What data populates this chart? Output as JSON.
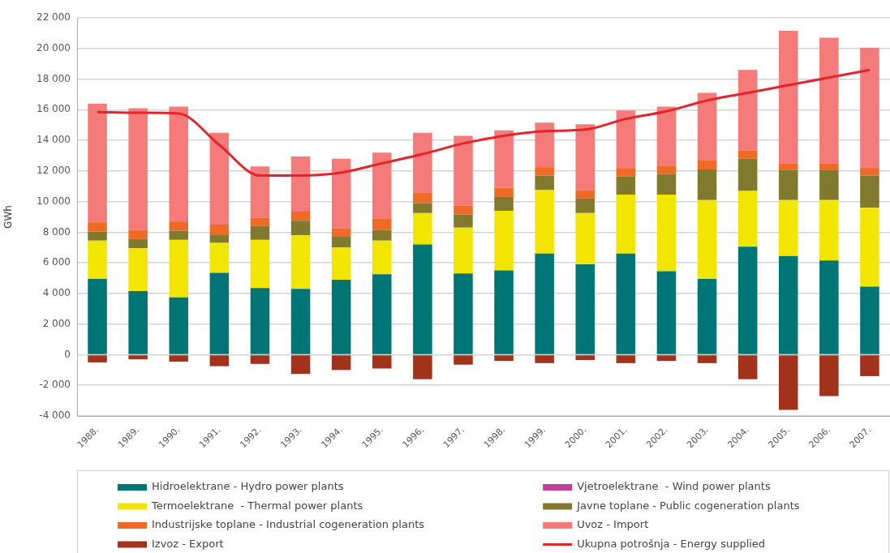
{
  "chart_data": {
    "type": "bar",
    "stacked": true,
    "ylabel": "GWh",
    "categories": [
      "1988.",
      "1989.",
      "1990.",
      "1991.",
      "1992.",
      "1993.",
      "1994.",
      "1995.",
      "1996.",
      "1997.",
      "1998.",
      "1999.",
      "2000.",
      "2001.",
      "2002.",
      "2003.",
      "2004.",
      "2005.",
      "2006.",
      "2007."
    ],
    "series": [
      {
        "name": "Hidroelektrane - Hydro power plants",
        "color": "#007575",
        "values": [
          4950,
          4150,
          3750,
          5350,
          4350,
          4300,
          4900,
          5250,
          7200,
          5300,
          5500,
          6600,
          5900,
          6600,
          5450,
          4950,
          7050,
          6450,
          6150,
          4450
        ]
      },
      {
        "name": "Vjetroelektrane  - Wind power plants",
        "color": "#c03fa0",
        "values": [
          0,
          0,
          0,
          0,
          0,
          0,
          0,
          0,
          0,
          0,
          0,
          0,
          0,
          0,
          0,
          0,
          0,
          0,
          0,
          0
        ]
      },
      {
        "name": "Termoelektrane  - Thermal power plants",
        "color": "#f2e500",
        "values": [
          2500,
          2800,
          3750,
          1950,
          3150,
          3500,
          2100,
          2200,
          2050,
          3000,
          3900,
          4150,
          3350,
          3850,
          5000,
          5150,
          3650,
          3650,
          3950,
          5150
        ]
      },
      {
        "name": "Javne toplane - Public cogeneration plants",
        "color": "#80792e",
        "values": [
          600,
          600,
          600,
          550,
          900,
          950,
          700,
          700,
          650,
          850,
          900,
          950,
          950,
          1200,
          1350,
          2000,
          2100,
          1950,
          1950,
          2100
        ]
      },
      {
        "name": "Industrijske toplane - Industrial cogeneration plants",
        "color": "#f06a25",
        "values": [
          600,
          600,
          600,
          650,
          550,
          600,
          550,
          750,
          700,
          600,
          600,
          550,
          550,
          500,
          550,
          600,
          550,
          450,
          450,
          500
        ]
      },
      {
        "name": "Uvoz - Import",
        "color": "#f57a7a",
        "values": [
          7750,
          7950,
          7500,
          6000,
          3350,
          3600,
          4550,
          4300,
          3900,
          4550,
          3750,
          2900,
          4300,
          3800,
          3850,
          4400,
          5250,
          8650,
          8200,
          7850
        ]
      },
      {
        "name": "Izvoz - Export",
        "color": "#a3321c",
        "values": [
          -500,
          -300,
          -450,
          -750,
          -600,
          -1250,
          -1000,
          -900,
          -1600,
          -650,
          -400,
          -550,
          -350,
          -550,
          -400,
          -550,
          -1600,
          -3600,
          -2700,
          -1400
        ]
      },
      {
        "name": "Ukupna potrošnja - Energy supplied",
        "type": "line",
        "color": "#e4242a",
        "values": [
          15850,
          15800,
          15750,
          13700,
          11700,
          11700,
          11900,
          12500,
          13100,
          13800,
          14300,
          14600,
          14700,
          15400,
          15900,
          16600,
          17100,
          17600,
          18100,
          18600
        ]
      }
    ],
    "ylim": [
      -4000,
      22000
    ],
    "yticks": [
      {
        "value": -4000,
        "label": "-4 000"
      },
      {
        "value": -2000,
        "label": "-2 000"
      },
      0,
      {
        "value": 2000,
        "label": "2 000"
      },
      {
        "value": 4000,
        "label": "4 000"
      },
      {
        "value": 6000,
        "label": "6 000"
      },
      {
        "value": 8000,
        "label": "8 000"
      },
      {
        "value": 10000,
        "label": "10 000"
      },
      {
        "value": 12000,
        "label": "12 000"
      },
      {
        "value": 14000,
        "label": "14 000"
      },
      {
        "value": 16000,
        "label": "16 000"
      },
      {
        "value": 18000,
        "label": "18 000"
      },
      {
        "value": 20000,
        "label": "20 000"
      },
      {
        "value": 22000,
        "label": "22 000"
      }
    ],
    "grid": "y",
    "legend": "bottom",
    "marker": "none"
  }
}
